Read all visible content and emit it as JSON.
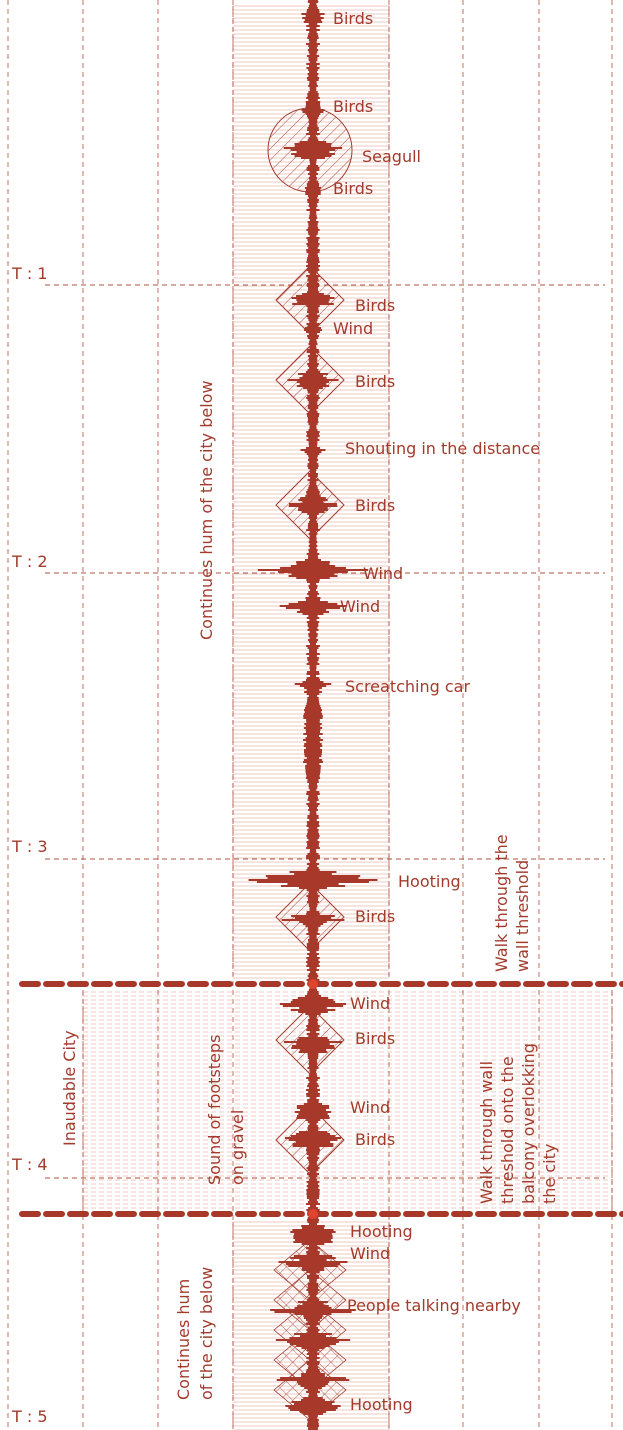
{
  "colors": {
    "ink": "#a23b2c",
    "wave": "#a8392a",
    "guide": "#b0503f",
    "marker": "#e0442e",
    "band_hatch": "#e8b7ac"
  },
  "time_markers": [
    {
      "label": "T : 1"
    },
    {
      "label": "T : 2"
    },
    {
      "label": "T : 3"
    },
    {
      "label": "T : 4"
    },
    {
      "label": "T : 5"
    }
  ],
  "sound_events": [
    {
      "label": "Birds",
      "shape": "none"
    },
    {
      "label": "Birds",
      "shape": "none"
    },
    {
      "label": "Seagull",
      "shape": "circle"
    },
    {
      "label": "Birds",
      "shape": "none"
    },
    {
      "label": "Birds",
      "shape": "diamond"
    },
    {
      "label": "Wind",
      "shape": "none"
    },
    {
      "label": "Birds",
      "shape": "diamond"
    },
    {
      "label": "Shouting in the distance",
      "shape": "none"
    },
    {
      "label": "Birds",
      "shape": "diamond"
    },
    {
      "label": "Wind",
      "shape": "none"
    },
    {
      "label": "Wind",
      "shape": "none"
    },
    {
      "label": "Screatching car",
      "shape": "none"
    },
    {
      "label": "Hooting",
      "shape": "none"
    },
    {
      "label": "Birds",
      "shape": "diamond"
    },
    {
      "label": "Wind",
      "shape": "none"
    },
    {
      "label": "Birds",
      "shape": "diamond"
    },
    {
      "label": "Wind",
      "shape": "none"
    },
    {
      "label": "Birds",
      "shape": "diamond"
    },
    {
      "label": "Hooting",
      "shape": "none"
    },
    {
      "label": "Wind",
      "shape": "none"
    },
    {
      "label": "People talking nearby",
      "shape": "crosshatch"
    },
    {
      "label": "Hooting",
      "shape": "none"
    }
  ],
  "vertical_annotations": {
    "city_hum_top": "Continues hum of the city below",
    "city_hum_bottom_line1": "Continues hum",
    "city_hum_bottom_line2": "of the city below",
    "wall_threshold_line1": "Walk through the",
    "wall_threshold_line2": "wall threshold",
    "inaudable_city": "Inaudable City",
    "footsteps_line1": "Sound of footsteps",
    "footsteps_line2": "on gravel",
    "balcony_line1": "Walk through wall",
    "balcony_line2": "threshold onto the",
    "balcony_line3": "balcony overlokking",
    "balcony_line4": "the city"
  }
}
